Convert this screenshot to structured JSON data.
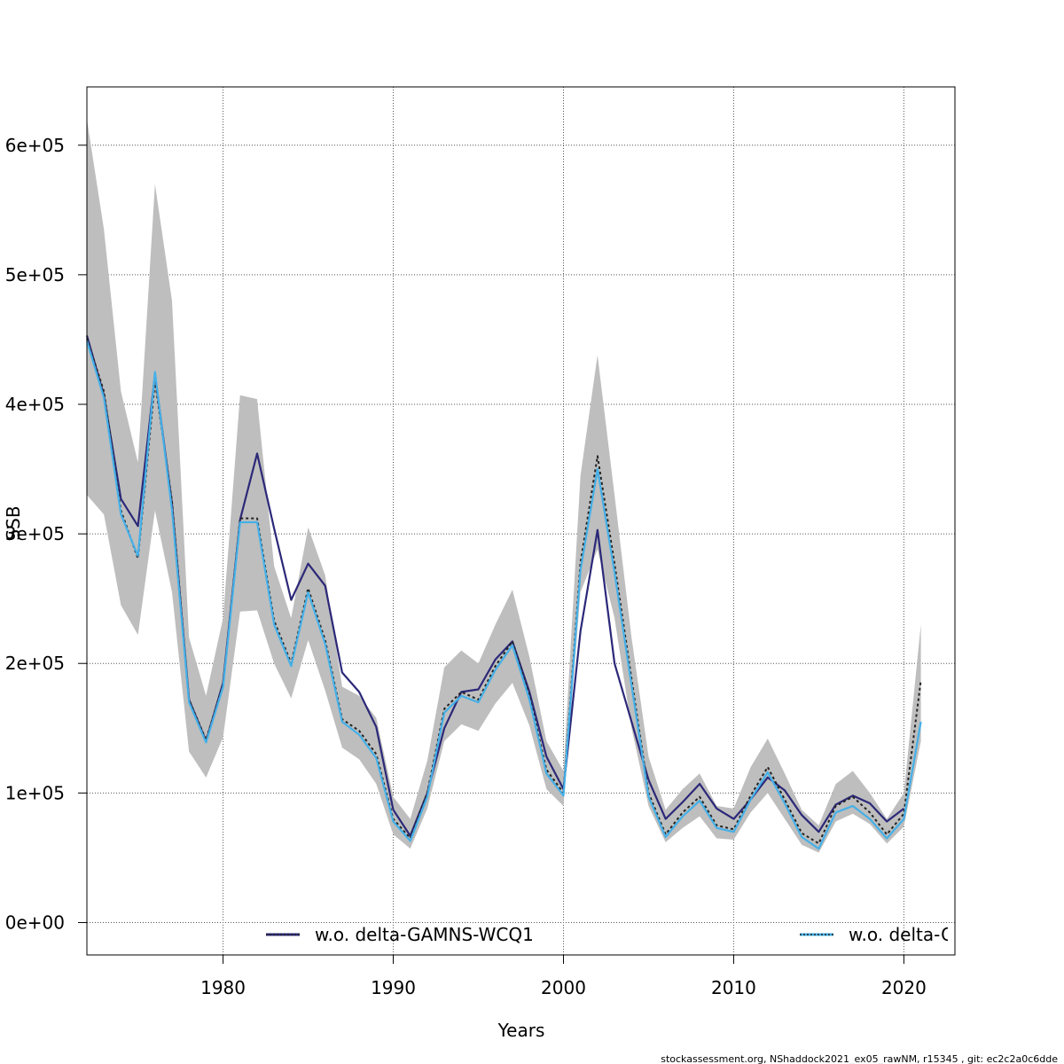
{
  "chart_data": {
    "type": "line",
    "xlabel": "Years",
    "ylabel": "SSB",
    "xlim": [
      1972,
      2023
    ],
    "ylim": [
      -25000,
      645000
    ],
    "x_ticks": [
      1980,
      1990,
      2000,
      2010,
      2020
    ],
    "y_ticks": [
      0,
      100000,
      200000,
      300000,
      400000,
      500000,
      600000
    ],
    "x_tick_labels": [
      "1980",
      "1990",
      "2000",
      "2010",
      "2020"
    ],
    "y_tick_labels": [
      "0e+00",
      "1e+05",
      "2e+05",
      "3e+05",
      "4e+05",
      "5e+05",
      "6e+05"
    ],
    "grid": true,
    "x": [
      1972,
      1973,
      1974,
      1975,
      1976,
      1977,
      1978,
      1979,
      1980,
      1981,
      1982,
      1983,
      1984,
      1985,
      1986,
      1987,
      1988,
      1989,
      1990,
      1991,
      1992,
      1993,
      1994,
      1995,
      1996,
      1997,
      1998,
      1999,
      2000,
      2001,
      2002,
      2003,
      2004,
      2005,
      2006,
      2007,
      2008,
      2009,
      2010,
      2011,
      2012,
      2013,
      2014,
      2015,
      2016,
      2017,
      2018,
      2019,
      2020,
      2021
    ],
    "band": {
      "lower": [
        330000,
        315000,
        245000,
        222000,
        318000,
        255000,
        132000,
        112000,
        143000,
        240000,
        241000,
        200000,
        173000,
        218000,
        179000,
        135000,
        126000,
        107000,
        68000,
        57000,
        88000,
        140000,
        153000,
        148000,
        169000,
        185000,
        152000,
        103000,
        90000,
        255000,
        288000,
        235000,
        150000,
        90000,
        62000,
        73000,
        82000,
        65000,
        64000,
        85000,
        100000,
        80000,
        60000,
        54000,
        78000,
        84000,
        76000,
        61000,
        74000,
        140000
      ],
      "upper": [
        620000,
        535000,
        410000,
        355000,
        570000,
        480000,
        220000,
        175000,
        235000,
        407000,
        404000,
        275000,
        235000,
        305000,
        268000,
        182000,
        175000,
        158000,
        97000,
        80000,
        125000,
        197000,
        210000,
        200000,
        230000,
        257000,
        205000,
        140000,
        117000,
        345000,
        438000,
        330000,
        220000,
        128000,
        87000,
        103000,
        115000,
        90000,
        88000,
        120000,
        142000,
        115000,
        87000,
        75000,
        107000,
        117000,
        100000,
        80000,
        100000,
        230000
      ]
    },
    "series": [
      {
        "name": "w.o. delta-GAMNS-WCQ1",
        "color": "#2c2878",
        "dash": "solid",
        "values": [
          453000,
          407000,
          327000,
          306000,
          423000,
          323000,
          172000,
          140000,
          185000,
          311000,
          362000,
          304000,
          249000,
          277000,
          260000,
          193000,
          178000,
          151000,
          87000,
          67000,
          100000,
          150000,
          178000,
          180000,
          203000,
          217000,
          178000,
          128000,
          103000,
          225000,
          303000,
          200000,
          155000,
          110000,
          80000,
          93000,
          107000,
          88000,
          80000,
          95000,
          112000,
          102000,
          83000,
          70000,
          91000,
          98000,
          92000,
          78000,
          88000,
          null
        ]
      },
      {
        "name": "",
        "color": "#222222",
        "dash": "3,3",
        "values": [
          451000,
          410000,
          318000,
          281000,
          418000,
          325000,
          172000,
          141000,
          184000,
          312000,
          312000,
          233000,
          200000,
          258000,
          218000,
          157000,
          148000,
          130000,
          80000,
          65000,
          100000,
          165000,
          178000,
          172000,
          198000,
          217000,
          175000,
          118000,
          100000,
          278000,
          360000,
          277000,
          188000,
          100000,
          68000,
          85000,
          97000,
          75000,
          72000,
          98000,
          120000,
          95000,
          69000,
          61000,
          90000,
          97000,
          85000,
          68000,
          84000,
          187000
        ]
      },
      {
        "name": "w.o. delta-G",
        "color": "#44b0e8",
        "dash": "solid",
        "values": [
          449000,
          405000,
          315000,
          283000,
          425000,
          318000,
          170000,
          139000,
          182000,
          309000,
          309000,
          230000,
          198000,
          255000,
          215000,
          155000,
          145000,
          127000,
          78000,
          63000,
          97000,
          162000,
          175000,
          170000,
          195000,
          214000,
          172000,
          115000,
          98000,
          272000,
          350000,
          270000,
          183000,
          97000,
          66000,
          82000,
          94000,
          73000,
          70000,
          95000,
          116000,
          92000,
          66000,
          57000,
          85000,
          90000,
          80000,
          65000,
          80000,
          155000
        ]
      }
    ],
    "legend": [
      {
        "label": "w.o. delta-GAMNS-WCQ1",
        "color": "#2c2878",
        "dot": "#222222"
      },
      {
        "label": "w.o. delta-G",
        "color": "#44b0e8",
        "dot": "#222222"
      }
    ],
    "legend_placement": "bottom"
  },
  "footer": "stockassessment.org, NShaddock2021_ex05_rawNM, r15345 , git: ec2c2a0c6dde"
}
